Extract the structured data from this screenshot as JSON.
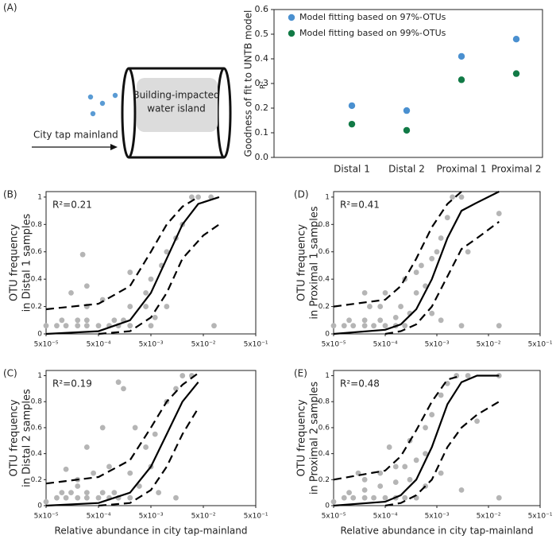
{
  "diagram": {
    "panel_label": "(A)",
    "arrow_label": "City tap mainland",
    "island_label": [
      "Building-impacted",
      "water island"
    ]
  },
  "chart_data": [
    {
      "type": "dot",
      "categories": [
        "Distal 1",
        "Distal 2",
        "Proximal 1",
        "Proximal 2"
      ],
      "series": [
        {
          "name": "Model fitting based on 97%-OTUs",
          "color": "#4a90d0",
          "values": [
            0.21,
            0.19,
            0.41,
            0.48
          ]
        },
        {
          "name": "Model fitting based on 99%-OTUs",
          "color": "#117a46",
          "values": [
            0.135,
            0.11,
            0.315,
            0.34
          ]
        }
      ],
      "ylabel": "Goodness of fit to UNTB model",
      "ylabel2": "R²",
      "legend": "top-left",
      "ylim": [
        0,
        0.6
      ],
      "yticks": [
        {
          "value": 0,
          "label": "0.0"
        },
        0.1,
        0.2,
        0.3,
        0.4,
        0.5,
        0.6
      ]
    },
    {
      "type": "scatter",
      "panel_label": "(B)",
      "annotation": "R²=0.21",
      "ylabel": [
        "OTU frequency",
        "in Distal 1 samples"
      ],
      "xscale": "log",
      "color": "#b5b5b5",
      "xlim": [
        5e-05,
        0.5
      ],
      "ylim": [
        0,
        1.04
      ],
      "xticks": [
        {
          "value": 5e-05,
          "label": "5x10⁻⁵"
        },
        {
          "value": 0.0005,
          "label": "5x10⁻⁴"
        },
        {
          "value": 0.005,
          "label": "5x10⁻³"
        },
        {
          "value": 0.05,
          "label": "5x10⁻²"
        },
        {
          "value": 0.5,
          "label": "5x10⁻¹"
        }
      ],
      "yticks": [
        0,
        0.2,
        0.4,
        0.6,
        0.8,
        1
      ],
      "x": [
        5e-05,
        8e-05,
        0.00012,
        0.0002,
        0.0003,
        0.0005,
        0.0008,
        0.0012,
        0.002,
        0.0001,
        0.0002,
        0.0003,
        0.001,
        0.0015,
        0.00015,
        0.0003,
        0.0006,
        0.002,
        0.004,
        0.00025,
        0.005,
        0.008,
        0.01,
        0.015,
        0.02,
        0.03,
        0.04,
        0.07,
        0.005,
        0.01,
        0.08,
        0.002,
        0.004,
        0.006,
        0.0003
      ],
      "values": [
        0.06,
        0.06,
        0.06,
        0.06,
        0.06,
        0.06,
        0.06,
        0.06,
        0.06,
        0.1,
        0.1,
        0.1,
        0.1,
        0.1,
        0.3,
        0.35,
        0.25,
        0.2,
        0.3,
        0.58,
        0.4,
        0.5,
        0.6,
        0.7,
        0.8,
        1,
        1,
        1,
        0.06,
        0.2,
        0.06,
        0.45,
        0.2,
        0.12,
        0.2
      ],
      "lines": [
        {
          "x": [
            5e-05,
            0.0005,
            0.002,
            0.005,
            0.01,
            0.02,
            0.04,
            0.1
          ],
          "values": [
            0,
            0.02,
            0.1,
            0.3,
            0.55,
            0.8,
            0.95,
            1
          ],
          "dash": false
        },
        {
          "x": [
            5e-05,
            0.0005,
            0.002,
            0.005,
            0.01,
            0.02,
            0.04
          ],
          "values": [
            0.18,
            0.22,
            0.35,
            0.6,
            0.8,
            0.93,
            1
          ],
          "dash": true
        },
        {
          "x": [
            0.0005,
            0.002,
            0.005,
            0.01,
            0.02,
            0.05,
            0.1
          ],
          "values": [
            0,
            0.02,
            0.12,
            0.3,
            0.55,
            0.72,
            0.8
          ],
          "dash": true
        }
      ]
    },
    {
      "type": "scatter",
      "panel_label": "(D)",
      "annotation": "R²=0.41",
      "ylabel": [
        "OTU frequency",
        "in Proximal 1 samples"
      ],
      "xscale": "log",
      "color": "#b5b5b5",
      "xlim": [
        5e-05,
        0.5
      ],
      "ylim": [
        0,
        1.04
      ],
      "xticks": [
        {
          "value": 5e-05,
          "label": "5x10⁻⁵"
        },
        {
          "value": 0.0005,
          "label": "5x10⁻⁴"
        },
        {
          "value": 0.005,
          "label": "5x10⁻³"
        },
        {
          "value": 0.05,
          "label": "5x10⁻²"
        },
        {
          "value": 0.5,
          "label": "5x10⁻¹"
        }
      ],
      "yticks": [
        0,
        0.2,
        0.4,
        0.6,
        0.8,
        1
      ],
      "x": [
        5e-05,
        8e-05,
        0.00012,
        0.0002,
        0.0003,
        0.0005,
        0.0008,
        0.0012,
        0.0001,
        0.0002,
        0.0004,
        0.0008,
        0.0015,
        0.00025,
        0.0004,
        0.001,
        0.002,
        0.003,
        0.0005,
        0.0012,
        0.002,
        0.004,
        0.006,
        0.008,
        0.01,
        0.015,
        0.02,
        0.004,
        0.006,
        0.015,
        0.08,
        0.08,
        0.0002,
        0.0025,
        0.005
      ],
      "values": [
        0.06,
        0.06,
        0.06,
        0.06,
        0.06,
        0.06,
        0.06,
        0.06,
        0.1,
        0.1,
        0.1,
        0.12,
        0.15,
        0.2,
        0.2,
        0.2,
        0.3,
        0.35,
        0.3,
        0.4,
        0.45,
        0.55,
        0.7,
        0.85,
        1,
        1,
        0.6,
        0.15,
        0.1,
        0.06,
        0.88,
        0.06,
        0.3,
        0.5,
        0.6
      ],
      "lines": [
        {
          "x": [
            5e-05,
            0.0005,
            0.001,
            0.002,
            0.004,
            0.008,
            0.015,
            0.03,
            0.08
          ],
          "values": [
            0,
            0.03,
            0.07,
            0.18,
            0.4,
            0.7,
            0.9,
            0.96,
            1.04
          ],
          "dash": false
        },
        {
          "x": [
            5e-05,
            0.0005,
            0.001,
            0.002,
            0.004,
            0.008,
            0.015
          ],
          "values": [
            0.2,
            0.25,
            0.35,
            0.55,
            0.78,
            0.95,
            1.04
          ],
          "dash": true
        },
        {
          "x": [
            0.0005,
            0.001,
            0.002,
            0.004,
            0.008,
            0.015,
            0.03,
            0.08
          ],
          "values": [
            0,
            0.02,
            0.07,
            0.2,
            0.42,
            0.62,
            0.7,
            0.82
          ],
          "dash": true
        }
      ]
    },
    {
      "type": "scatter",
      "panel_label": "(C)",
      "annotation": "R²=0.19",
      "ylabel": [
        "OTU frequency",
        "in Distal 2 samples"
      ],
      "xscale": "log",
      "color": "#b5b5b5",
      "xlabel": "Relative abundance in city tap-mainland",
      "xlim": [
        5e-05,
        0.5
      ],
      "ylim": [
        0,
        1.04
      ],
      "xticks": [
        {
          "value": 5e-05,
          "label": "5x10⁻⁵"
        },
        {
          "value": 0.0005,
          "label": "5x10⁻⁴"
        },
        {
          "value": 0.005,
          "label": "5x10⁻³"
        },
        {
          "value": 0.05,
          "label": "5x10⁻²"
        },
        {
          "value": 0.5,
          "label": "5x10⁻¹"
        }
      ],
      "yticks": [
        0,
        0.2,
        0.4,
        0.6,
        0.8,
        1
      ],
      "x": [
        5e-05,
        8e-05,
        0.00012,
        0.0002,
        0.0003,
        0.0005,
        0.0008,
        0.0012,
        0.002,
        0.0001,
        0.00015,
        0.0003,
        0.0006,
        0.001,
        0.00012,
        0.0002,
        0.0004,
        0.0008,
        0.002,
        0.0012,
        0.0015,
        0.0025,
        0.004,
        0.006,
        0.01,
        0.015,
        0.02,
        0.03,
        0.0003,
        0.0006,
        0.007,
        0.015,
        0.003,
        0.0002,
        0.005
      ],
      "values": [
        0.03,
        0.06,
        0.06,
        0.06,
        0.06,
        0.06,
        0.06,
        0.06,
        0.06,
        0.1,
        0.1,
        0.1,
        0.1,
        0.1,
        0.28,
        0.2,
        0.25,
        0.3,
        0.25,
        0.95,
        0.9,
        0.6,
        0.45,
        0.55,
        0.8,
        0.9,
        1,
        1,
        0.45,
        0.6,
        0.1,
        0.06,
        0.15,
        0.15,
        0.3
      ],
      "lines": [
        {
          "x": [
            5e-05,
            0.0005,
            0.002,
            0.005,
            0.01,
            0.02,
            0.04
          ],
          "values": [
            0,
            0.02,
            0.1,
            0.3,
            0.55,
            0.8,
            0.95
          ],
          "dash": false
        },
        {
          "x": [
            5e-05,
            0.0005,
            0.002,
            0.005,
            0.01,
            0.02,
            0.04
          ],
          "values": [
            0.17,
            0.22,
            0.35,
            0.6,
            0.8,
            0.93,
            1.02
          ],
          "dash": true
        },
        {
          "x": [
            0.0005,
            0.002,
            0.005,
            0.01,
            0.02,
            0.04
          ],
          "values": [
            0,
            0.02,
            0.12,
            0.3,
            0.55,
            0.75
          ],
          "dash": true
        }
      ]
    },
    {
      "type": "scatter",
      "panel_label": "(E)",
      "annotation": "R²=0.48",
      "ylabel": [
        "OTU frequency",
        "in Proximal 2 samples"
      ],
      "xscale": "log",
      "color": "#b5b5b5",
      "xlabel": "Relative abundance in city tap-mainland",
      "xlim": [
        5e-05,
        0.5
      ],
      "ylim": [
        0,
        1.04
      ],
      "xticks": [
        {
          "value": 5e-05,
          "label": "5x10⁻⁵"
        },
        {
          "value": 0.0005,
          "label": "5x10⁻⁴"
        },
        {
          "value": 0.005,
          "label": "5x10⁻³"
        },
        {
          "value": 0.05,
          "label": "5x10⁻²"
        },
        {
          "value": 0.5,
          "label": "5x10⁻¹"
        }
      ],
      "yticks": [
        0,
        0.2,
        0.4,
        0.6,
        0.8,
        1
      ],
      "x": [
        5e-05,
        8e-05,
        0.00012,
        0.0002,
        0.0003,
        0.0005,
        0.0008,
        0.0012,
        0.002,
        0.0001,
        0.0002,
        0.0004,
        0.0008,
        0.0015,
        0.0002,
        0.0004,
        0.0008,
        0.0012,
        0.002,
        0.003,
        0.0006,
        0.0015,
        0.003,
        0.004,
        0.006,
        0.008,
        0.012,
        0.02,
        0.03,
        0.08,
        0.003,
        0.006,
        0.015,
        0.08,
        0.00015
      ],
      "values": [
        0.03,
        0.06,
        0.06,
        0.06,
        0.06,
        0.06,
        0.06,
        0.06,
        0.06,
        0.1,
        0.12,
        0.15,
        0.18,
        0.2,
        0.2,
        0.25,
        0.3,
        0.3,
        0.35,
        0.4,
        0.45,
        0.5,
        0.6,
        0.7,
        0.85,
        0.94,
        1,
        1,
        0.65,
        1,
        0.15,
        0.25,
        0.12,
        0.06,
        0.25
      ],
      "lines": [
        {
          "x": [
            5e-05,
            0.0005,
            0.001,
            0.002,
            0.004,
            0.008,
            0.015,
            0.03,
            0.08
          ],
          "values": [
            0,
            0.03,
            0.08,
            0.2,
            0.45,
            0.78,
            0.95,
            1,
            1
          ],
          "dash": false
        },
        {
          "x": [
            5e-05,
            0.0005,
            0.001,
            0.002,
            0.004,
            0.008,
            0.015
          ],
          "values": [
            0.2,
            0.27,
            0.38,
            0.58,
            0.8,
            0.97,
            1.0
          ],
          "dash": true
        },
        {
          "x": [
            0.0005,
            0.001,
            0.002,
            0.004,
            0.008,
            0.015,
            0.03,
            0.08
          ],
          "values": [
            0,
            0.02,
            0.08,
            0.2,
            0.45,
            0.6,
            0.7,
            0.8
          ],
          "dash": true
        }
      ]
    }
  ]
}
